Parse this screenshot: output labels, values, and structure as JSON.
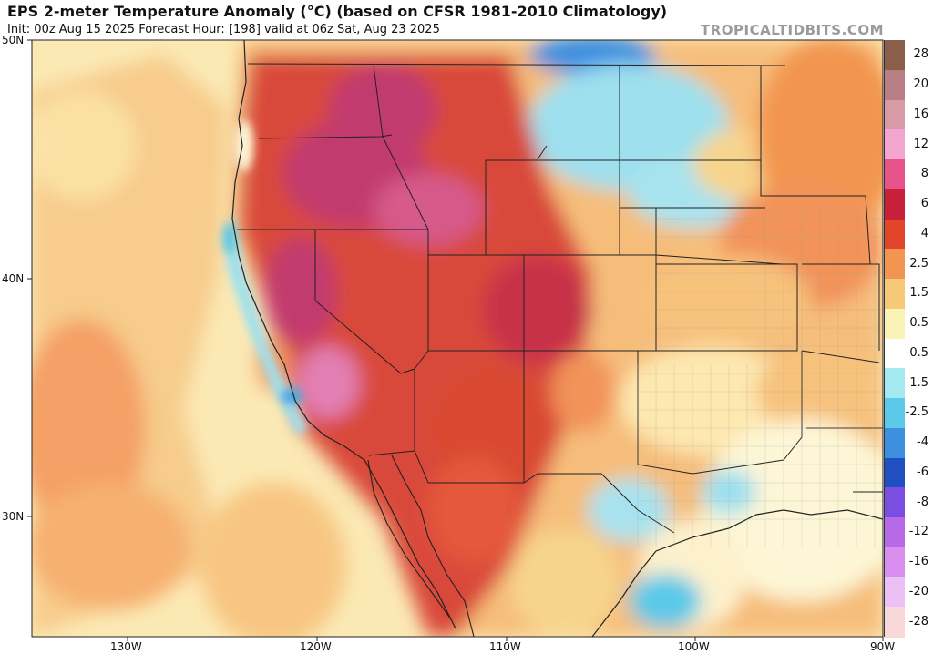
{
  "header": {
    "title": "EPS 2-meter Temperature Anomaly (°C) (based on CFSR 1981-2010 Climatology)",
    "subtitle": "Init: 00z Aug 15 2025   Forecast Hour: [198]   valid at 06z Sat, Aug 23 2025",
    "brand": "TROPICALTIDBITS.COM"
  },
  "axes": {
    "lat_labels": [
      "50N",
      "40N",
      "30N"
    ],
    "lon_labels": [
      "130W",
      "120W",
      "110W",
      "100W",
      "90W"
    ]
  },
  "legend": {
    "labels": [
      "28",
      "20",
      "16",
      "12",
      "8",
      "6",
      "4",
      "2.5",
      "1.5",
      "0.5",
      "-0.5",
      "-1.5",
      "-2.5",
      "-4",
      "-6",
      "-8",
      "-12",
      "-16",
      "-20",
      "-28"
    ],
    "colors": [
      "#8a5e48",
      "#b97f86",
      "#d99aa8",
      "#f2a6d0",
      "#e7548a",
      "#c8203a",
      "#e3452b",
      "#f29550",
      "#f6c978",
      "#fbf2b8",
      "#ffffff",
      "#a3eaf0",
      "#5cc9e8",
      "#3d8fe0",
      "#1f4fc0",
      "#7a4ee0",
      "#b66ae8",
      "#d98ff0",
      "#ecc0f4",
      "#f8d8d8"
    ]
  },
  "colors": {
    "hot_core": "#d9483a",
    "very_hot": "#c23a6e",
    "warm": "#f2935a",
    "mild_warm": "#f7d48c",
    "near_normal": "#fdf6d6",
    "cool": "#9ee0ee",
    "cooler": "#4aa8e0",
    "ocean_warm": "#f6b070",
    "border": "#222222"
  }
}
